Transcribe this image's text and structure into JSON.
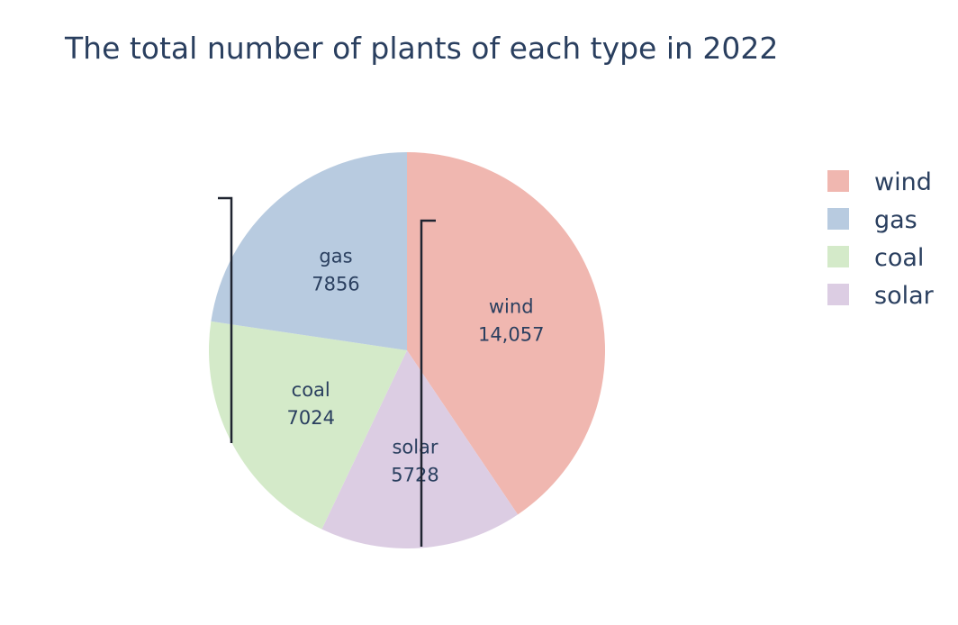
{
  "chart_data": {
    "type": "pie",
    "title": "The total number of plants of each type in 2022",
    "slices": [
      {
        "label": "wind",
        "value": 14057,
        "value_text": "14,057",
        "color": "#f0b7b0"
      },
      {
        "label": "gas",
        "value": 7856,
        "value_text": "7856",
        "color": "#b8cbe0"
      },
      {
        "label": "coal",
        "value": 7024,
        "value_text": "7024",
        "color": "#d4eac9"
      },
      {
        "label": "solar",
        "value": 5728,
        "value_text": "5728",
        "color": "#dccde3"
      }
    ],
    "legend": {
      "placement": "right",
      "entries": [
        "wind",
        "gas",
        "coal",
        "solar"
      ]
    },
    "slice_order": [
      "wind",
      "solar",
      "coal",
      "gas"
    ],
    "direction": "clockwise",
    "start": "top"
  }
}
